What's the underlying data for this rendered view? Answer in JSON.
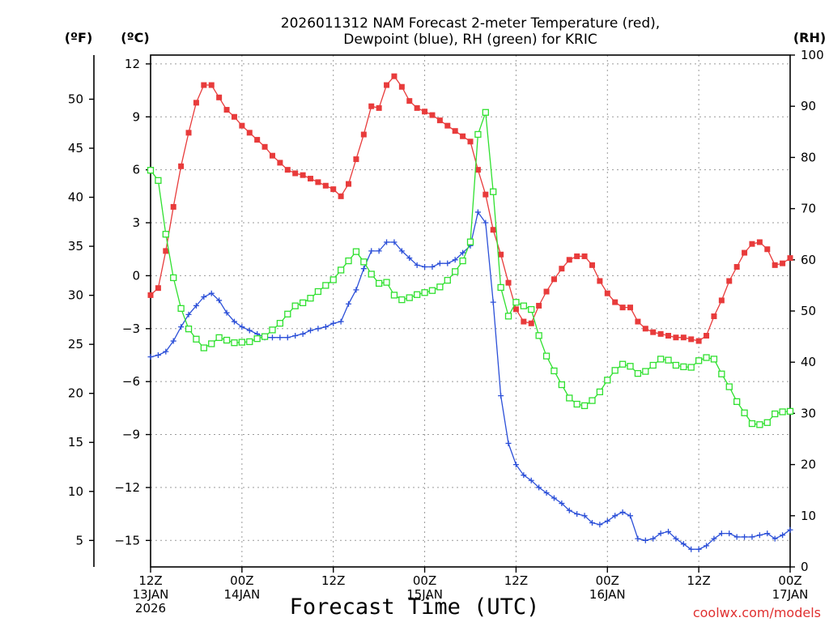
{
  "chart_data": {
    "type": "line",
    "title_lines": [
      "2026011312 NAM Forecast 2-meter Temperature (red),",
      "Dewpoint (blue), RH (green) for KRIC"
    ],
    "xlabel": "Forecast Time (UTC)",
    "credit": "coolwx.com/models",
    "units": {
      "f": "(ºF)",
      "c": "(ºC)",
      "rh": "(RH)"
    },
    "ylim_c": [
      -16.5,
      12.5
    ],
    "ylim_rh": [
      0,
      100
    ],
    "xlim_hours": [
      0,
      84
    ],
    "yticks_f": [
      5,
      10,
      15,
      20,
      25,
      30,
      35,
      40,
      45,
      50
    ],
    "yticks_c": [
      -15,
      -12,
      -9,
      -6,
      -3,
      0,
      3,
      6,
      9,
      12
    ],
    "yticks_rh": [
      0,
      10,
      20,
      30,
      40,
      50,
      60,
      70,
      80,
      90,
      100
    ],
    "xticks": [
      {
        "hour": 0,
        "lines": [
          "12Z",
          "13JAN",
          "2026"
        ]
      },
      {
        "hour": 12,
        "lines": [
          "00Z",
          "14JAN"
        ]
      },
      {
        "hour": 24,
        "lines": [
          "12Z"
        ]
      },
      {
        "hour": 36,
        "lines": [
          "00Z",
          "15JAN"
        ]
      },
      {
        "hour": 48,
        "lines": [
          "12Z"
        ]
      },
      {
        "hour": 60,
        "lines": [
          "00Z",
          "16JAN"
        ]
      },
      {
        "hour": 72,
        "lines": [
          "12Z"
        ]
      },
      {
        "hour": 84,
        "lines": [
          "00Z",
          "17JAN"
        ]
      }
    ],
    "grid": true,
    "series": [
      {
        "name": "Temperature",
        "color": "#e83b3b",
        "marker": "filled-square",
        "axis": "celsius",
        "points": [
          [
            0,
            -1.1
          ],
          [
            1,
            -0.7
          ],
          [
            2,
            1.4
          ],
          [
            3,
            3.9
          ],
          [
            4,
            6.2
          ],
          [
            5,
            8.1
          ],
          [
            6,
            9.8
          ],
          [
            7,
            10.8
          ],
          [
            8,
            10.8
          ],
          [
            9,
            10.1
          ],
          [
            10,
            9.4
          ],
          [
            11,
            9.0
          ],
          [
            12,
            8.5
          ],
          [
            13,
            8.1
          ],
          [
            14,
            7.7
          ],
          [
            15,
            7.3
          ],
          [
            16,
            6.8
          ],
          [
            17,
            6.4
          ],
          [
            18,
            6.0
          ],
          [
            19,
            5.8
          ],
          [
            20,
            5.7
          ],
          [
            21,
            5.5
          ],
          [
            22,
            5.3
          ],
          [
            23,
            5.1
          ],
          [
            24,
            4.9
          ],
          [
            25,
            4.5
          ],
          [
            26,
            5.2
          ],
          [
            27,
            6.6
          ],
          [
            28,
            8.0
          ],
          [
            29,
            9.6
          ],
          [
            30,
            9.5
          ],
          [
            31,
            10.8
          ],
          [
            32,
            11.3
          ],
          [
            33,
            10.7
          ],
          [
            34,
            9.9
          ],
          [
            35,
            9.5
          ],
          [
            36,
            9.3
          ],
          [
            37,
            9.1
          ],
          [
            38,
            8.8
          ],
          [
            39,
            8.5
          ],
          [
            40,
            8.2
          ],
          [
            41,
            7.9
          ],
          [
            42,
            7.6
          ],
          [
            43,
            6.0
          ],
          [
            44,
            4.6
          ],
          [
            45,
            2.6
          ],
          [
            46,
            1.2
          ],
          [
            47,
            -0.4
          ],
          [
            48,
            -1.9
          ],
          [
            49,
            -2.6
          ],
          [
            50,
            -2.7
          ],
          [
            51,
            -1.7
          ],
          [
            52,
            -0.9
          ],
          [
            53,
            -0.2
          ],
          [
            54,
            0.4
          ],
          [
            55,
            0.9
          ],
          [
            56,
            1.1
          ],
          [
            57,
            1.1
          ],
          [
            58,
            0.6
          ],
          [
            59,
            -0.3
          ],
          [
            60,
            -1.0
          ],
          [
            61,
            -1.5
          ],
          [
            62,
            -1.8
          ],
          [
            63,
            -1.8
          ],
          [
            64,
            -2.6
          ],
          [
            65,
            -3.0
          ],
          [
            66,
            -3.2
          ],
          [
            67,
            -3.3
          ],
          [
            68,
            -3.4
          ],
          [
            69,
            -3.5
          ],
          [
            70,
            -3.5
          ],
          [
            71,
            -3.6
          ],
          [
            72,
            -3.7
          ],
          [
            73,
            -3.4
          ],
          [
            74,
            -2.3
          ],
          [
            75,
            -1.4
          ],
          [
            76,
            -0.3
          ],
          [
            77,
            0.5
          ],
          [
            78,
            1.3
          ],
          [
            79,
            1.8
          ],
          [
            80,
            1.9
          ],
          [
            81,
            1.5
          ],
          [
            82,
            0.6
          ],
          [
            83,
            0.7
          ],
          [
            84,
            1.0
          ]
        ]
      },
      {
        "name": "Dewpoint",
        "color": "#2b4fd8",
        "marker": "plus",
        "axis": "celsius",
        "points": [
          [
            0,
            -4.6
          ],
          [
            1,
            -4.5
          ],
          [
            2,
            -4.3
          ],
          [
            3,
            -3.7
          ],
          [
            4,
            -2.9
          ],
          [
            5,
            -2.2
          ],
          [
            6,
            -1.7
          ],
          [
            7,
            -1.2
          ],
          [
            8,
            -1.0
          ],
          [
            9,
            -1.4
          ],
          [
            10,
            -2.1
          ],
          [
            11,
            -2.6
          ],
          [
            12,
            -2.9
          ],
          [
            13,
            -3.1
          ],
          [
            14,
            -3.3
          ],
          [
            15,
            -3.5
          ],
          [
            16,
            -3.5
          ],
          [
            17,
            -3.5
          ],
          [
            18,
            -3.5
          ],
          [
            19,
            -3.4
          ],
          [
            20,
            -3.3
          ],
          [
            21,
            -3.1
          ],
          [
            22,
            -3.0
          ],
          [
            23,
            -2.9
          ],
          [
            24,
            -2.7
          ],
          [
            25,
            -2.6
          ],
          [
            26,
            -1.6
          ],
          [
            27,
            -0.8
          ],
          [
            28,
            0.4
          ],
          [
            29,
            1.4
          ],
          [
            30,
            1.4
          ],
          [
            31,
            1.9
          ],
          [
            32,
            1.9
          ],
          [
            33,
            1.4
          ],
          [
            34,
            1.0
          ],
          [
            35,
            0.6
          ],
          [
            36,
            0.5
          ],
          [
            37,
            0.5
          ],
          [
            38,
            0.7
          ],
          [
            39,
            0.7
          ],
          [
            40,
            0.9
          ],
          [
            41,
            1.3
          ],
          [
            42,
            1.7
          ],
          [
            43,
            3.6
          ],
          [
            44,
            3.0
          ],
          [
            45,
            -1.5
          ],
          [
            46,
            -6.8
          ],
          [
            47,
            -9.5
          ],
          [
            48,
            -10.7
          ],
          [
            49,
            -11.3
          ],
          [
            50,
            -11.6
          ],
          [
            51,
            -12.0
          ],
          [
            52,
            -12.3
          ],
          [
            53,
            -12.6
          ],
          [
            54,
            -12.9
          ],
          [
            55,
            -13.3
          ],
          [
            56,
            -13.5
          ],
          [
            57,
            -13.6
          ],
          [
            58,
            -14.0
          ],
          [
            59,
            -14.1
          ],
          [
            60,
            -13.9
          ],
          [
            61,
            -13.6
          ],
          [
            62,
            -13.4
          ],
          [
            63,
            -13.6
          ],
          [
            64,
            -14.9
          ],
          [
            65,
            -15.0
          ],
          [
            66,
            -14.9
          ],
          [
            67,
            -14.6
          ],
          [
            68,
            -14.5
          ],
          [
            69,
            -14.9
          ],
          [
            70,
            -15.2
          ],
          [
            71,
            -15.5
          ],
          [
            72,
            -15.5
          ],
          [
            73,
            -15.3
          ],
          [
            74,
            -14.9
          ],
          [
            75,
            -14.6
          ],
          [
            76,
            -14.6
          ],
          [
            77,
            -14.8
          ],
          [
            78,
            -14.8
          ],
          [
            79,
            -14.8
          ],
          [
            80,
            -14.7
          ],
          [
            81,
            -14.6
          ],
          [
            82,
            -14.9
          ],
          [
            83,
            -14.7
          ],
          [
            84,
            -14.4
          ]
        ]
      },
      {
        "name": "RH",
        "color": "#2fe02f",
        "marker": "open-square",
        "axis": "rh",
        "points": [
          [
            0,
            77.5
          ],
          [
            1,
            75.5
          ],
          [
            2,
            65
          ],
          [
            3,
            56.5
          ],
          [
            4,
            50.5
          ],
          [
            5,
            46.5
          ],
          [
            6,
            44.5
          ],
          [
            7,
            42.8
          ],
          [
            8,
            43.6
          ],
          [
            9,
            44.8
          ],
          [
            10,
            44.3
          ],
          [
            11,
            43.8
          ],
          [
            12,
            43.9
          ],
          [
            13,
            44.0
          ],
          [
            14,
            44.6
          ],
          [
            15,
            45.0
          ],
          [
            16,
            46.3
          ],
          [
            17,
            47.6
          ],
          [
            18,
            49.4
          ],
          [
            19,
            51.0
          ],
          [
            20,
            51.6
          ],
          [
            21,
            52.5
          ],
          [
            22,
            53.8
          ],
          [
            23,
            55.0
          ],
          [
            24,
            56.1
          ],
          [
            25,
            58.0
          ],
          [
            26,
            59.8
          ],
          [
            27,
            61.6
          ],
          [
            28,
            59.6
          ],
          [
            29,
            57.2
          ],
          [
            30,
            55.4
          ],
          [
            31,
            55.6
          ],
          [
            32,
            53.1
          ],
          [
            33,
            52.2
          ],
          [
            34,
            52.6
          ],
          [
            35,
            53.2
          ],
          [
            36,
            53.6
          ],
          [
            37,
            54.0
          ],
          [
            38,
            54.7
          ],
          [
            39,
            56.0
          ],
          [
            40,
            57.7
          ],
          [
            41,
            59.8
          ],
          [
            42,
            63.5
          ],
          [
            43,
            84.5
          ],
          [
            44,
            88.8
          ],
          [
            45,
            73.3
          ],
          [
            46,
            54.6
          ],
          [
            47,
            49.0
          ],
          [
            48,
            51.7
          ],
          [
            49,
            51.0
          ],
          [
            50,
            50.3
          ],
          [
            51,
            45.2
          ],
          [
            52,
            41.2
          ],
          [
            53,
            38.3
          ],
          [
            54,
            35.6
          ],
          [
            55,
            33.0
          ],
          [
            56,
            31.8
          ],
          [
            57,
            31.5
          ],
          [
            58,
            32.5
          ],
          [
            59,
            34.2
          ],
          [
            60,
            36.5
          ],
          [
            61,
            38.4
          ],
          [
            62,
            39.6
          ],
          [
            63,
            39.2
          ],
          [
            64,
            37.8
          ],
          [
            65,
            38.2
          ],
          [
            66,
            39.4
          ],
          [
            67,
            40.6
          ],
          [
            68,
            40.4
          ],
          [
            69,
            39.4
          ],
          [
            70,
            39.1
          ],
          [
            71,
            39.0
          ],
          [
            72,
            40.3
          ],
          [
            73,
            40.9
          ],
          [
            74,
            40.6
          ],
          [
            75,
            37.7
          ],
          [
            76,
            35.2
          ],
          [
            77,
            32.3
          ],
          [
            78,
            30.1
          ],
          [
            79,
            28.0
          ],
          [
            80,
            27.8
          ],
          [
            81,
            28.2
          ],
          [
            82,
            29.9
          ],
          [
            83,
            30.3
          ],
          [
            84,
            30.4
          ]
        ]
      }
    ]
  }
}
